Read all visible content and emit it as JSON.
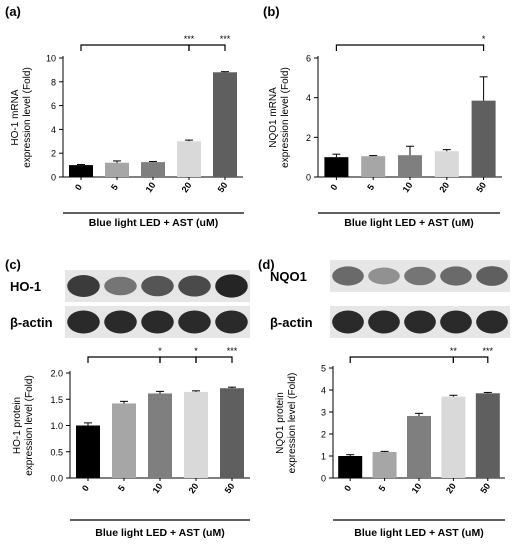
{
  "chart_data": [
    {
      "panel": "(a)",
      "type": "bar",
      "ylabel": [
        "HO-1 mRNA",
        "expression level (Fold)"
      ],
      "xlabel": "Blue light LED + AST (uM)",
      "categories": [
        "0",
        "5",
        "10",
        "20",
        "50"
      ],
      "values": [
        1.0,
        1.2,
        1.25,
        3.0,
        8.8
      ],
      "errors": [
        0.05,
        0.15,
        0.05,
        0.1,
        0.05
      ],
      "colors": [
        "#000000",
        "#a6a6a6",
        "#7f7f7f",
        "#d9d9d9",
        "#5f5f5f"
      ],
      "ylim": [
        0,
        10
      ],
      "yticks": [
        "0",
        "2",
        "4",
        "6",
        "8",
        "10"
      ],
      "significance": [
        {
          "from": 0,
          "to": 3,
          "label": "***"
        },
        {
          "from": 3,
          "to": 4,
          "label": "***"
        }
      ]
    },
    {
      "panel": "(b)",
      "type": "bar",
      "ylabel": [
        "NQO1 mRNA",
        "expression level (Fold)"
      ],
      "xlabel": "Blue light LED + AST (uM)",
      "categories": [
        "0",
        "5",
        "10",
        "20",
        "50"
      ],
      "values": [
        1.0,
        1.05,
        1.1,
        1.3,
        3.85
      ],
      "errors": [
        0.15,
        0.03,
        0.45,
        0.08,
        1.2
      ],
      "colors": [
        "#000000",
        "#a6a6a6",
        "#7f7f7f",
        "#d9d9d9",
        "#5f5f5f"
      ],
      "ylim": [
        0,
        6
      ],
      "yticks": [
        "0",
        "2",
        "4",
        "6"
      ],
      "significance": [
        {
          "from": 0,
          "to": 4,
          "label": "*"
        }
      ]
    },
    {
      "panel": "(c)",
      "type": "bar",
      "ylabel": [
        "HO-1 protein",
        "expression level (Fold)"
      ],
      "xlabel": "Blue light LED + AST (uM)",
      "categories": [
        "0",
        "5",
        "10",
        "20",
        "50"
      ],
      "values": [
        1.0,
        1.42,
        1.61,
        1.64,
        1.71
      ],
      "errors": [
        0.05,
        0.04,
        0.04,
        0.02,
        0.02
      ],
      "colors": [
        "#000000",
        "#a6a6a6",
        "#7f7f7f",
        "#d9d9d9",
        "#5f5f5f"
      ],
      "ylim": [
        0,
        2.0
      ],
      "yticks": [
        "0.0",
        "0.5",
        "1.0",
        "1.5",
        "2.0"
      ],
      "significance": [
        {
          "from": 0,
          "to": 2,
          "label": "*"
        },
        {
          "from": 2,
          "to": 3,
          "label": "*"
        },
        {
          "from": 3,
          "to": 4,
          "label": "***"
        }
      ],
      "blots": [
        {
          "label": "HO-1",
          "intensities": [
            0.82,
            0.55,
            0.7,
            0.75,
            0.92
          ]
        },
        {
          "label": "β-actin",
          "intensities": [
            0.9,
            0.9,
            0.9,
            0.9,
            0.9
          ]
        }
      ]
    },
    {
      "panel": "(d)",
      "type": "bar",
      "ylabel": [
        "NQO1 protein",
        "expression level (Fold)"
      ],
      "xlabel": "Blue light LED + AST (uM)",
      "categories": [
        "0",
        "5",
        "10",
        "20",
        "50"
      ],
      "values": [
        1.0,
        1.18,
        2.82,
        3.7,
        3.85
      ],
      "errors": [
        0.06,
        0.03,
        0.12,
        0.06,
        0.04
      ],
      "colors": [
        "#000000",
        "#a6a6a6",
        "#7f7f7f",
        "#d9d9d9",
        "#5f5f5f"
      ],
      "ylim": [
        0,
        5
      ],
      "yticks": [
        "0",
        "1",
        "2",
        "3",
        "4",
        "5"
      ],
      "significance": [
        {
          "from": 0,
          "to": 3,
          "label": "**"
        },
        {
          "from": 3,
          "to": 4,
          "label": "***"
        }
      ],
      "blots": [
        {
          "label": "NQO1",
          "intensities": [
            0.6,
            0.42,
            0.55,
            0.6,
            0.65
          ]
        },
        {
          "label": "β-actin",
          "intensities": [
            0.9,
            0.9,
            0.9,
            0.9,
            0.9
          ]
        }
      ]
    }
  ]
}
